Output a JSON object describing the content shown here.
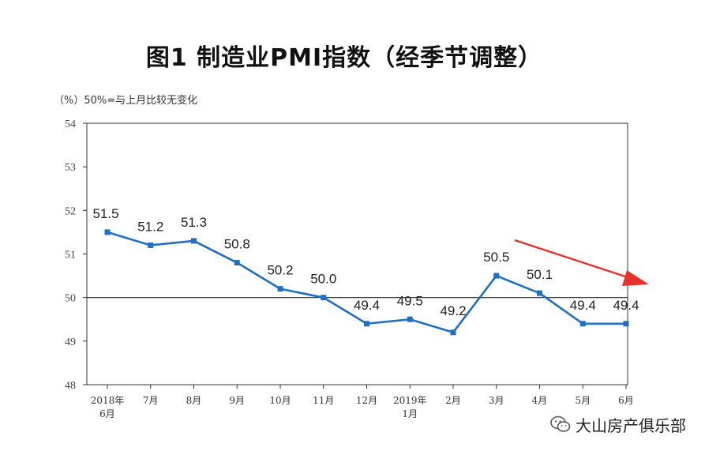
{
  "title": "图1 制造业PMI指数（经季节调整）",
  "unit_note": "（%）50%=与上月比较无变化",
  "watermark": {
    "text": "大山房产俱乐部",
    "icon": "wechat-icon"
  },
  "colors": {
    "series": "#1f6fc5",
    "arrow": "#e8312a",
    "axis": "#333333"
  },
  "chart_data": {
    "type": "line",
    "title": "图1 制造业PMI指数（经季节调整）",
    "ylabel": "（%）",
    "ylim": [
      48,
      54
    ],
    "yticks": [
      48,
      49,
      50,
      51,
      52,
      53,
      54
    ],
    "reference_line": 50,
    "grid": false,
    "categories": [
      [
        "2018年",
        "6月"
      ],
      [
        "7月"
      ],
      [
        "8月"
      ],
      [
        "9月"
      ],
      [
        "10月"
      ],
      [
        "11月"
      ],
      [
        "12月"
      ],
      [
        "2019年",
        "1月"
      ],
      [
        "2月"
      ],
      [
        "3月"
      ],
      [
        "4月"
      ],
      [
        "5月"
      ],
      [
        "6月"
      ]
    ],
    "series": [
      {
        "values": [
          51.5,
          51.2,
          51.3,
          50.8,
          50.2,
          50.0,
          49.4,
          49.5,
          49.2,
          50.5,
          50.1,
          49.4,
          49.4
        ],
        "labels": [
          "51.5",
          "51.2",
          "51.3",
          "50.8",
          "50.2",
          "50.0",
          "49.4",
          "49.5",
          "49.2",
          "50.5",
          "50.1",
          "49.4",
          "49.4"
        ]
      }
    ],
    "annotation": "red arrow pointing down-right"
  }
}
